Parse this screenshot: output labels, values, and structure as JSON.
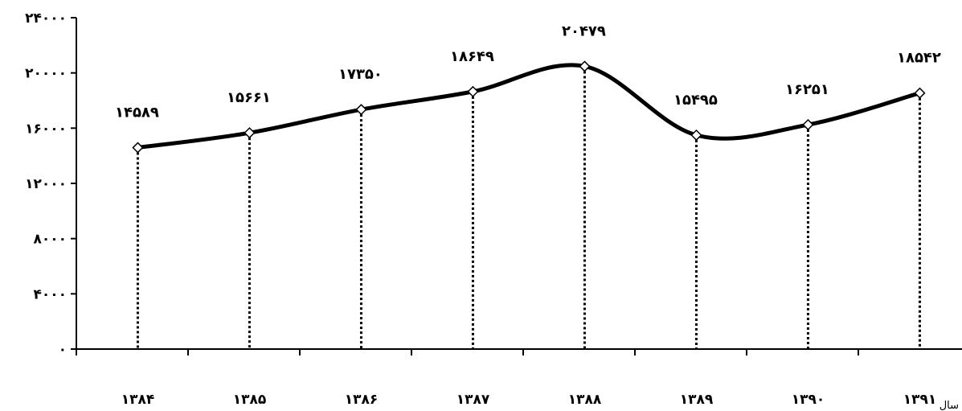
{
  "chart_data": {
    "type": "line",
    "title": "",
    "xlabel": "سال",
    "ylabel": "",
    "categories": [
      "۱۳۸۴",
      "۱۳۸۵",
      "۱۳۸۶",
      "۱۳۸۷",
      "۱۳۸۸",
      "۱۳۸۹",
      "۱۳۹۰",
      "۱۳۹۱"
    ],
    "values": [
      14589,
      15661,
      17350,
      18649,
      20479,
      15495,
      16251,
      18542
    ],
    "data_labels": [
      "۱۴۵۸۹",
      "۱۵۶۶۱",
      "۱۷۳۵۰",
      "۱۸۶۴۹",
      "۲۰۴۷۹",
      "۱۵۴۹۵",
      "۱۶۲۵۱",
      "۱۸۵۴۲"
    ],
    "ylim": [
      0,
      24000
    ],
    "yticks": [
      0,
      4000,
      8000,
      12000,
      16000,
      20000,
      24000
    ],
    "ytick_labels": [
      "۰",
      "۴۰۰۰",
      "۸۰۰۰",
      "۱۲۰۰۰",
      "۱۶۰۰۰",
      "۲۰۰۰۰",
      "۲۴۰۰۰"
    ],
    "grid": false,
    "legend": "none",
    "drop_lines": true,
    "line_color": "#000000",
    "marker": "diamond"
  }
}
